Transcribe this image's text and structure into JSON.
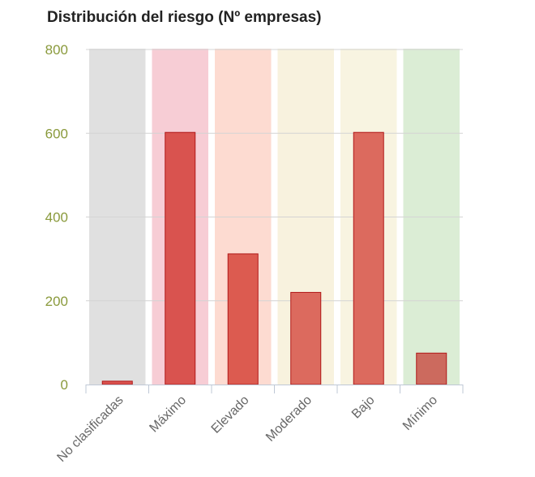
{
  "chart_data": {
    "type": "bar",
    "title": "Distribución del riesgo (Nº empresas)",
    "xlabel": "",
    "ylabel": "",
    "categories": [
      "No clasificadas",
      "Máximo",
      "Elevado",
      "Moderado",
      "Bajo",
      "Mínimo"
    ],
    "values": [
      8,
      602,
      312,
      220,
      602,
      75
    ],
    "ylim": [
      0,
      800
    ],
    "yticks": [
      "0",
      "200",
      "400",
      "600",
      "800"
    ],
    "grid": true,
    "legend": "none",
    "bar_colors": [
      "#d9534f",
      "#d9534f",
      "#dc5b50",
      "#dc6a5e",
      "#dc6a5e",
      "#cc6a5e"
    ],
    "band_colors": [
      "#e0e0e0",
      "#f7cdd5",
      "#fddbd1",
      "#f8f2de",
      "#f8f4e1",
      "#dbedd5"
    ],
    "bar_border_color": "#b01818"
  }
}
